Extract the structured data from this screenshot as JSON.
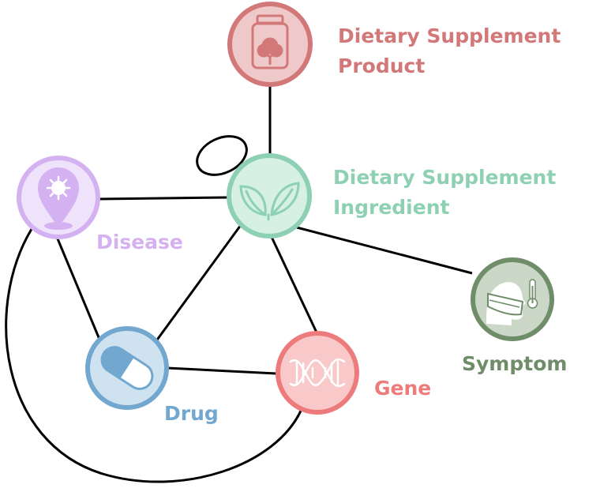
{
  "nodes": {
    "product": {
      "label_line1": "Dietary Supplement",
      "label_line2": "Product",
      "color": "#d27878",
      "fill": "#efc9c9",
      "icon": "supplement-bottle-icon"
    },
    "ingredient": {
      "label_line1": "Dietary Supplement",
      "label_line2": "Ingredient",
      "color": "#8dd0b3",
      "fill": "#d6f0e4",
      "icon": "leaves-icon"
    },
    "disease": {
      "label": "Disease",
      "color": "#d4b2f2",
      "fill": "#efe3fb",
      "icon": "virus-pin-icon"
    },
    "drug": {
      "label": "Drug",
      "color": "#72a8cf",
      "fill": "#cfe2f0",
      "icon": "pill-capsule-icon"
    },
    "gene": {
      "label": "Gene",
      "color": "#ee7b7b",
      "fill": "#f9c9c9",
      "icon": "dna-icon"
    },
    "symptom": {
      "label": "Symptom",
      "color": "#6f8d69",
      "fill": "#cbd8c7",
      "icon": "mask-thermometer-icon"
    }
  }
}
